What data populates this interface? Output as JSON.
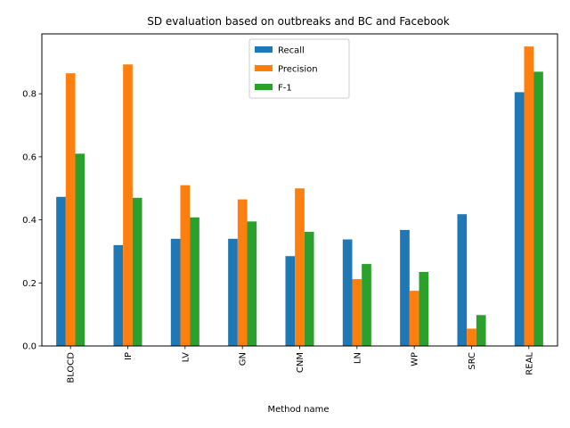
{
  "chart_data": {
    "type": "bar",
    "title": "SD evaluation based on outbreaks and BC and Facebook",
    "xlabel": "Method name",
    "ylabel": "",
    "categories": [
      "BLOCD",
      "IP",
      "LV",
      "GN",
      "CNM",
      "LN",
      "WP",
      "SRC",
      "REAL"
    ],
    "series": [
      {
        "name": "Recall",
        "color": "#1f77b4",
        "values": [
          0.473,
          0.32,
          0.34,
          0.34,
          0.285,
          0.338,
          0.368,
          0.418,
          0.805
        ]
      },
      {
        "name": "Precision",
        "color": "#ff7f0e",
        "values": [
          0.865,
          0.893,
          0.51,
          0.465,
          0.5,
          0.212,
          0.175,
          0.055,
          0.95
        ]
      },
      {
        "name": "F-1",
        "color": "#2ca02c",
        "values": [
          0.61,
          0.47,
          0.408,
          0.395,
          0.362,
          0.26,
          0.235,
          0.098,
          0.87
        ]
      }
    ],
    "ylim": [
      0,
      0.99
    ],
    "yticks": [
      0.0,
      0.2,
      0.4,
      0.6,
      0.8
    ],
    "ytick_labels": [
      "0.0",
      "0.2",
      "0.4",
      "0.6",
      "0.8"
    ],
    "grid": false,
    "legend_position": "top-center"
  }
}
